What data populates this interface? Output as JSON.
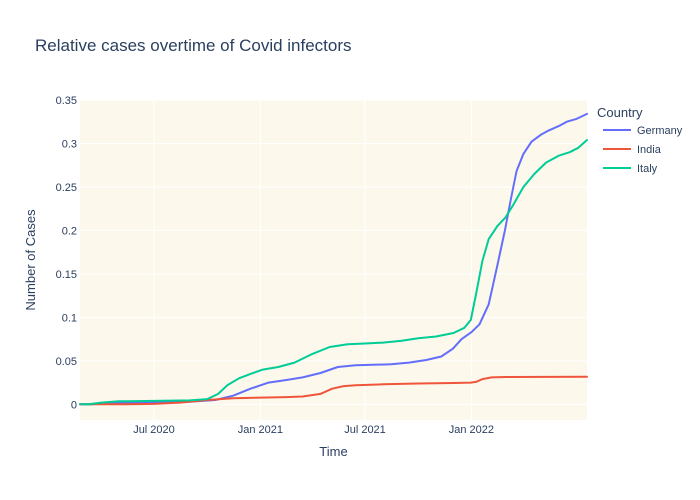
{
  "chart_data": {
    "type": "line",
    "title": "Relative cases overtime of Covid infectors",
    "xlabel": "Time",
    "ylabel": "Number of Cases",
    "x_range": [
      "2020-02-24",
      "2022-07-20"
    ],
    "ylim": [
      -0.018,
      0.35
    ],
    "y_ticks": [
      0,
      0.05,
      0.1,
      0.15,
      0.2,
      0.25,
      0.3,
      0.35
    ],
    "y_tick_labels": [
      "0",
      "0.05",
      "0.1",
      "0.15",
      "0.2",
      "0.25",
      "0.3",
      "0.35"
    ],
    "x_ticks": [
      "2020-07-01",
      "2021-01-01",
      "2021-07-01",
      "2022-01-01"
    ],
    "x_tick_labels": [
      "Jul 2020",
      "Jan 2021",
      "Jul 2021",
      "Jan 2022"
    ],
    "plot_background": "#fcf8ec",
    "grid": true,
    "legend": {
      "title": "Country",
      "position": "right"
    },
    "series": [
      {
        "name": "Germany",
        "color": "#636efa",
        "points": [
          [
            "2020-02-24",
            0.0
          ],
          [
            "2020-03-15",
            0.0
          ],
          [
            "2020-04-15",
            0.002
          ],
          [
            "2020-05-15",
            0.002
          ],
          [
            "2020-07-01",
            0.0025
          ],
          [
            "2020-09-01",
            0.003
          ],
          [
            "2020-10-15",
            0.005
          ],
          [
            "2020-11-15",
            0.01
          ],
          [
            "2020-12-15",
            0.018
          ],
          [
            "2021-01-15",
            0.025
          ],
          [
            "2021-02-15",
            0.028
          ],
          [
            "2021-03-15",
            0.031
          ],
          [
            "2021-04-15",
            0.036
          ],
          [
            "2021-05-15",
            0.043
          ],
          [
            "2021-06-15",
            0.045
          ],
          [
            "2021-07-15",
            0.0455
          ],
          [
            "2021-08-15",
            0.046
          ],
          [
            "2021-09-15",
            0.048
          ],
          [
            "2021-10-15",
            0.051
          ],
          [
            "2021-11-10",
            0.055
          ],
          [
            "2021-11-30",
            0.064
          ],
          [
            "2021-12-15",
            0.075
          ],
          [
            "2022-01-01",
            0.083
          ],
          [
            "2022-01-15",
            0.092
          ],
          [
            "2022-01-31",
            0.115
          ],
          [
            "2022-02-15",
            0.16
          ],
          [
            "2022-02-28",
            0.2
          ],
          [
            "2022-03-10",
            0.235
          ],
          [
            "2022-03-20",
            0.268
          ],
          [
            "2022-04-01",
            0.288
          ],
          [
            "2022-04-15",
            0.302
          ],
          [
            "2022-05-01",
            0.31
          ],
          [
            "2022-05-15",
            0.315
          ],
          [
            "2022-06-01",
            0.32
          ],
          [
            "2022-06-15",
            0.325
          ],
          [
            "2022-07-01",
            0.328
          ],
          [
            "2022-07-20",
            0.334
          ]
        ]
      },
      {
        "name": "India",
        "color": "#ef553b",
        "points": [
          [
            "2020-02-24",
            0.0
          ],
          [
            "2020-05-01",
            0.0
          ],
          [
            "2020-07-01",
            0.0005
          ],
          [
            "2020-08-15",
            0.002
          ],
          [
            "2020-10-01",
            0.005
          ],
          [
            "2020-11-15",
            0.007
          ],
          [
            "2021-01-01",
            0.0078
          ],
          [
            "2021-02-15",
            0.0083
          ],
          [
            "2021-03-15",
            0.009
          ],
          [
            "2021-04-15",
            0.012
          ],
          [
            "2021-05-05",
            0.018
          ],
          [
            "2021-05-25",
            0.021
          ],
          [
            "2021-06-15",
            0.022
          ],
          [
            "2021-08-01",
            0.023
          ],
          [
            "2021-10-01",
            0.024
          ],
          [
            "2021-12-01",
            0.0245
          ],
          [
            "2021-12-31",
            0.025
          ],
          [
            "2022-01-10",
            0.026
          ],
          [
            "2022-01-20",
            0.029
          ],
          [
            "2022-02-05",
            0.031
          ],
          [
            "2022-03-01",
            0.0315
          ],
          [
            "2022-07-20",
            0.0318
          ]
        ]
      },
      {
        "name": "Italy",
        "color": "#00cc96",
        "points": [
          [
            "2020-02-24",
            0.0
          ],
          [
            "2020-03-10",
            0.0
          ],
          [
            "2020-04-01",
            0.002
          ],
          [
            "2020-05-01",
            0.0035
          ],
          [
            "2020-07-01",
            0.004
          ],
          [
            "2020-09-01",
            0.0045
          ],
          [
            "2020-10-01",
            0.006
          ],
          [
            "2020-10-20",
            0.012
          ],
          [
            "2020-11-05",
            0.022
          ],
          [
            "2020-11-25",
            0.03
          ],
          [
            "2020-12-15",
            0.035
          ],
          [
            "2021-01-05",
            0.04
          ],
          [
            "2021-02-01",
            0.043
          ],
          [
            "2021-03-01",
            0.048
          ],
          [
            "2021-04-01",
            0.058
          ],
          [
            "2021-05-01",
            0.066
          ],
          [
            "2021-06-01",
            0.069
          ],
          [
            "2021-07-01",
            0.07
          ],
          [
            "2021-08-01",
            0.071
          ],
          [
            "2021-09-01",
            0.073
          ],
          [
            "2021-10-01",
            0.076
          ],
          [
            "2021-11-01",
            0.078
          ],
          [
            "2021-12-01",
            0.082
          ],
          [
            "2021-12-20",
            0.088
          ],
          [
            "2021-12-31",
            0.097
          ],
          [
            "2022-01-10",
            0.13
          ],
          [
            "2022-01-20",
            0.165
          ],
          [
            "2022-01-31",
            0.19
          ],
          [
            "2022-02-15",
            0.205
          ],
          [
            "2022-03-01",
            0.215
          ],
          [
            "2022-03-15",
            0.23
          ],
          [
            "2022-04-01",
            0.25
          ],
          [
            "2022-04-20",
            0.265
          ],
          [
            "2022-05-10",
            0.278
          ],
          [
            "2022-06-01",
            0.286
          ],
          [
            "2022-06-20",
            0.29
          ],
          [
            "2022-07-05",
            0.295
          ],
          [
            "2022-07-20",
            0.304
          ]
        ]
      }
    ]
  }
}
